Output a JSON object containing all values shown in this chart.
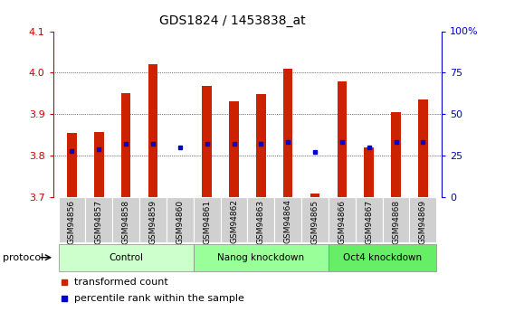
{
  "title": "GDS1824 / 1453838_at",
  "samples": [
    "GSM94856",
    "GSM94857",
    "GSM94858",
    "GSM94859",
    "GSM94860",
    "GSM94861",
    "GSM94862",
    "GSM94863",
    "GSM94864",
    "GSM94865",
    "GSM94866",
    "GSM94867",
    "GSM94868",
    "GSM94869"
  ],
  "red_values": [
    3.855,
    3.856,
    3.95,
    4.02,
    3.7,
    3.968,
    3.93,
    3.948,
    4.01,
    3.708,
    3.978,
    3.82,
    3.905,
    3.935
  ],
  "blue_values": [
    28,
    29,
    32,
    32,
    30,
    32,
    32,
    32,
    33,
    27,
    33,
    30,
    33,
    33
  ],
  "groups": [
    {
      "label": "Control",
      "start": 0,
      "end": 4,
      "color": "#ccffcc"
    },
    {
      "label": "Nanog knockdown",
      "start": 5,
      "end": 9,
      "color": "#99ff99"
    },
    {
      "label": "Oct4 knockdown",
      "start": 10,
      "end": 13,
      "color": "#66ee66"
    }
  ],
  "ylim_left": [
    3.7,
    4.1
  ],
  "ylim_right": [
    0,
    100
  ],
  "yticks_left": [
    3.7,
    3.8,
    3.9,
    4.0,
    4.1
  ],
  "yticks_right": [
    0,
    25,
    50,
    75,
    100
  ],
  "ytick_labels_right": [
    "0",
    "25",
    "50",
    "75",
    "100%"
  ],
  "left_color": "#cc0000",
  "right_color": "#0000cc",
  "bar_color": "#cc2200",
  "dot_color": "#0000cc",
  "bar_width": 0.35,
  "background_color": "#ffffff",
  "legend_red_label": "transformed count",
  "legend_blue_label": "percentile rank within the sample",
  "protocol_label": "protocol",
  "xlim": [
    -0.7,
    13.7
  ]
}
